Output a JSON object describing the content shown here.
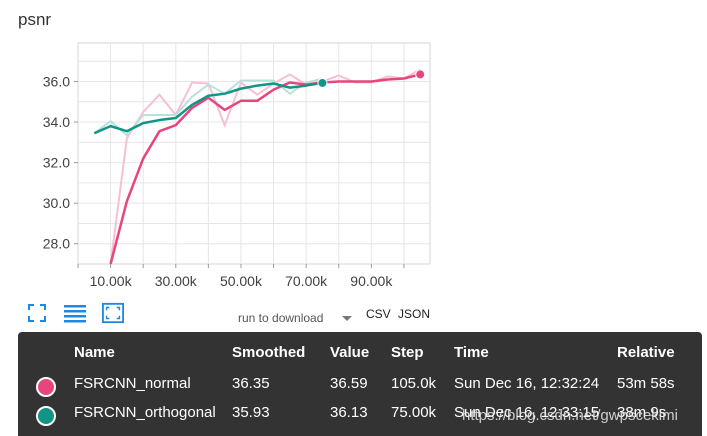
{
  "chart_title": "psnr",
  "chart_data": {
    "type": "line",
    "title": "psnr",
    "xlabel": "",
    "ylabel": "",
    "xlim": [
      0,
      108000
    ],
    "ylim": [
      27.0,
      37.9
    ],
    "x_ticks": [
      10000,
      30000,
      50000,
      70000,
      90000
    ],
    "x_tick_labels": [
      "10.00k",
      "30.00k",
      "50.00k",
      "70.00k",
      "90.00k"
    ],
    "y_ticks": [
      28.0,
      30.0,
      32.0,
      34.0,
      36.0
    ],
    "y_tick_labels": [
      "28.0",
      "30.0",
      "32.0",
      "34.0",
      "36.0"
    ],
    "grid": true,
    "series": [
      {
        "name": "FSRCNN_normal",
        "color": "#e8457f",
        "raw_color": "#f7bfd3",
        "smoothed": [
          [
            10000,
            27.0
          ],
          [
            15000,
            30.1
          ],
          [
            20000,
            32.2
          ],
          [
            25000,
            33.55
          ],
          [
            30000,
            33.85
          ],
          [
            35000,
            34.7
          ],
          [
            40000,
            35.2
          ],
          [
            45000,
            34.6
          ],
          [
            50000,
            35.05
          ],
          [
            55000,
            35.05
          ],
          [
            60000,
            35.6
          ],
          [
            65000,
            35.95
          ],
          [
            70000,
            35.85
          ],
          [
            75000,
            35.95
          ],
          [
            80000,
            36.0
          ],
          [
            85000,
            36.0
          ],
          [
            90000,
            36.0
          ],
          [
            95000,
            36.1
          ],
          [
            100000,
            36.15
          ],
          [
            105000,
            36.35
          ]
        ],
        "raw": [
          [
            10000,
            27.0
          ],
          [
            15000,
            33.2
          ],
          [
            20000,
            34.5
          ],
          [
            25000,
            35.35
          ],
          [
            30000,
            34.35
          ],
          [
            35000,
            35.95
          ],
          [
            40000,
            35.9
          ],
          [
            45000,
            33.85
          ],
          [
            50000,
            35.95
          ],
          [
            55000,
            35.35
          ],
          [
            60000,
            35.9
          ],
          [
            65000,
            36.35
          ],
          [
            70000,
            35.85
          ],
          [
            75000,
            36.0
          ],
          [
            80000,
            36.3
          ],
          [
            85000,
            35.95
          ],
          [
            90000,
            35.95
          ],
          [
            95000,
            36.25
          ],
          [
            100000,
            36.15
          ],
          [
            105000,
            36.59
          ]
        ]
      },
      {
        "name": "FSRCNN_orthogonal",
        "color": "#129486",
        "raw_color": "#b9e1dc",
        "smoothed": [
          [
            5000,
            33.45
          ],
          [
            10000,
            33.8
          ],
          [
            15000,
            33.55
          ],
          [
            20000,
            33.95
          ],
          [
            25000,
            34.1
          ],
          [
            30000,
            34.2
          ],
          [
            35000,
            34.85
          ],
          [
            40000,
            35.3
          ],
          [
            45000,
            35.4
          ],
          [
            50000,
            35.65
          ],
          [
            55000,
            35.8
          ],
          [
            60000,
            35.9
          ],
          [
            65000,
            35.7
          ],
          [
            70000,
            35.8
          ],
          [
            75000,
            35.93
          ]
        ],
        "raw": [
          [
            5000,
            33.45
          ],
          [
            10000,
            34.05
          ],
          [
            15000,
            33.35
          ],
          [
            20000,
            34.35
          ],
          [
            25000,
            34.35
          ],
          [
            30000,
            34.35
          ],
          [
            35000,
            35.25
          ],
          [
            40000,
            35.85
          ],
          [
            45000,
            35.4
          ],
          [
            50000,
            36.05
          ],
          [
            55000,
            36.05
          ],
          [
            60000,
            36.05
          ],
          [
            65000,
            35.4
          ],
          [
            70000,
            35.95
          ],
          [
            75000,
            36.13
          ]
        ]
      }
    ]
  },
  "toolbar": {
    "icons": [
      "expand-icon",
      "list-icon",
      "fit-domain-icon"
    ],
    "download_label": "run to download",
    "csv_label": "CSV",
    "json_label": "JSON"
  },
  "tooltip": {
    "headers": {
      "name": "Name",
      "smoothed": "Smoothed",
      "value": "Value",
      "step": "Step",
      "time": "Time",
      "relative": "Relative"
    },
    "rows": [
      {
        "color": "#e8457f",
        "name": "FSRCNN_normal",
        "smoothed": "36.35",
        "value": "36.59",
        "step": "105.0k",
        "time": "Sun Dec 16, 12:32:24",
        "relative": "53m 58s"
      },
      {
        "color": "#129486",
        "name": "FSRCNN_orthogonal",
        "smoothed": "35.93",
        "value": "36.13",
        "step": "75.00k",
        "time": "Sun Dec 16, 12:33:15",
        "relative": "38m 9s"
      }
    ]
  },
  "watermark": "https://blog.csdn.net/gwpscekimi"
}
